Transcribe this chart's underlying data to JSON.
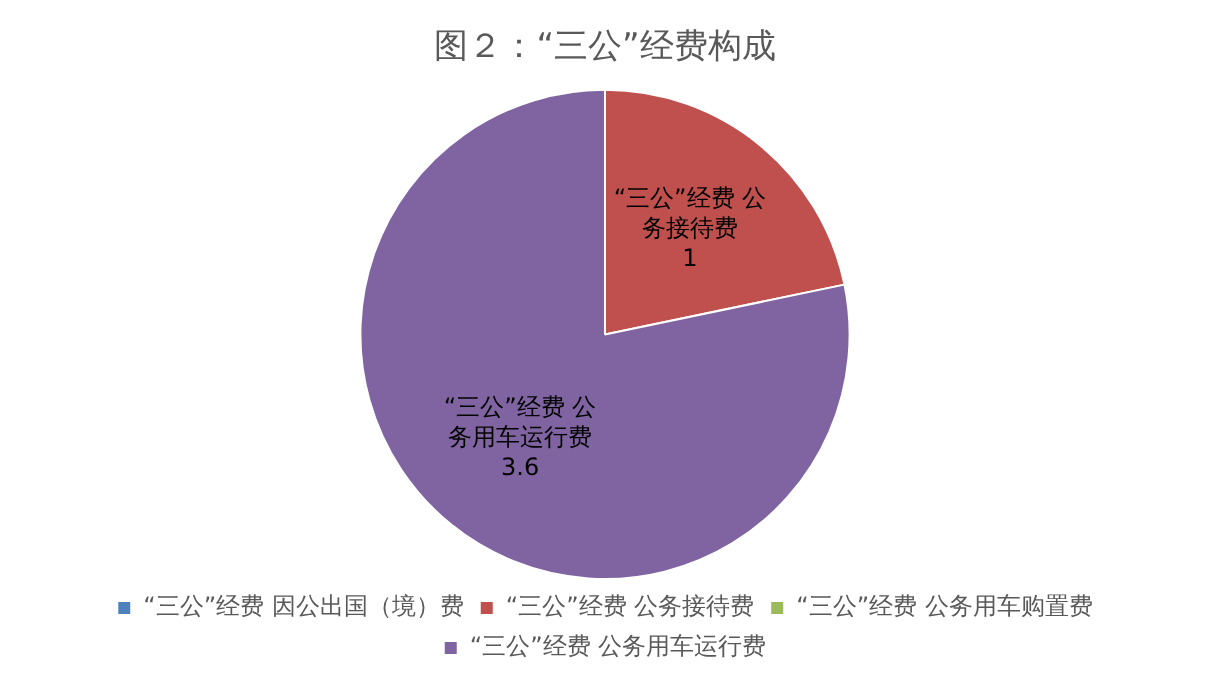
{
  "chart_data": {
    "type": "pie",
    "title": "图２：“三公”经费构成",
    "categories": [
      "“三公”经费 因公出国（境）费",
      "“三公”经费 公务接待费",
      "“三公”经费 公务用车购置费",
      "“三公”经费 公务用车运行费"
    ],
    "values": [
      0,
      1,
      0,
      3.6
    ],
    "colors": [
      "#4f81bd",
      "#c0504d",
      "#9bbb59",
      "#8064a2"
    ],
    "value_labels": [
      null,
      "1",
      null,
      "3.6"
    ],
    "legend": "bottom"
  }
}
